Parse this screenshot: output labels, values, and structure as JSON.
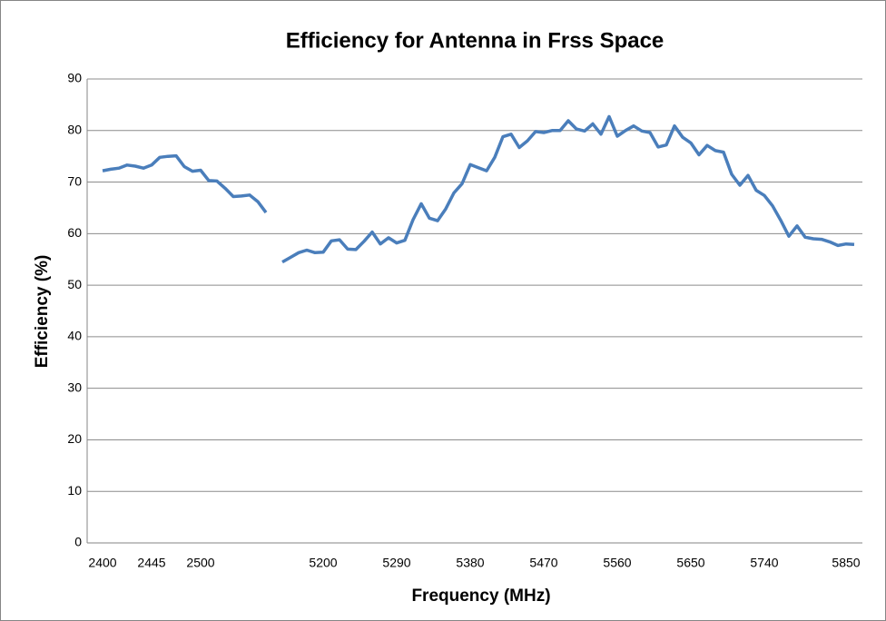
{
  "chart_data": {
    "type": "line",
    "title": "Efficiency for Antenna in Frss Space",
    "x_label": "Frequency  (MHz)",
    "y_label": "Efficiency (%)",
    "categories": [
      null,
      "2400",
      null,
      null,
      null,
      null,
      null,
      "2445",
      null,
      null,
      null,
      null,
      null,
      "2500",
      null,
      null,
      null,
      null,
      null,
      null,
      null,
      null,
      null,
      null,
      null,
      null,
      null,
      null,
      "5200",
      null,
      null,
      null,
      null,
      null,
      null,
      null,
      null,
      "5290",
      null,
      null,
      null,
      null,
      null,
      null,
      null,
      null,
      "5380",
      null,
      null,
      null,
      null,
      null,
      null,
      null,
      null,
      "5470",
      null,
      null,
      null,
      null,
      null,
      null,
      null,
      null,
      "5560",
      null,
      null,
      null,
      null,
      null,
      null,
      null,
      null,
      "5650",
      null,
      null,
      null,
      null,
      null,
      null,
      null,
      null,
      "5740",
      null,
      null,
      null,
      null,
      null,
      null,
      null,
      null,
      null,
      "5850",
      null
    ],
    "series": [
      {
        "name": "Efficiency",
        "color": "#4a7ebb",
        "values": [
          null,
          72.2,
          72.5,
          72.7,
          73.3,
          73.1,
          72.7,
          73.3,
          74.8,
          75.0,
          75.1,
          73.0,
          72.1,
          72.3,
          70.3,
          70.2,
          68.8,
          67.2,
          67.3,
          67.5,
          66.2,
          64.1,
          null,
          54.5,
          55.4,
          56.3,
          56.8,
          56.3,
          56.4,
          58.6,
          58.8,
          57.0,
          56.9,
          58.5,
          60.3,
          58.0,
          59.2,
          58.2,
          58.7,
          62.7,
          65.8,
          63.0,
          62.5,
          64.8,
          67.9,
          69.7,
          73.4,
          72.8,
          72.2,
          74.8,
          78.8,
          79.3,
          76.7,
          78.0,
          79.8,
          79.6,
          80.0,
          80.0,
          81.9,
          80.3,
          79.9,
          81.3,
          79.3,
          82.7,
          78.9,
          80.0,
          80.9,
          79.9,
          79.6,
          76.8,
          77.2,
          80.9,
          78.7,
          77.6,
          75.3,
          77.1,
          76.1,
          75.8,
          71.5,
          69.4,
          71.3,
          68.4,
          67.4,
          65.4,
          62.6,
          59.5,
          61.5,
          59.3,
          59.0,
          58.9,
          58.4,
          57.7,
          58.0,
          57.9
        ]
      }
    ],
    "ylim": [
      0,
      90
    ],
    "yticks": [
      0,
      10,
      20,
      30,
      40,
      50,
      60,
      70,
      80,
      90
    ],
    "grid": true
  }
}
